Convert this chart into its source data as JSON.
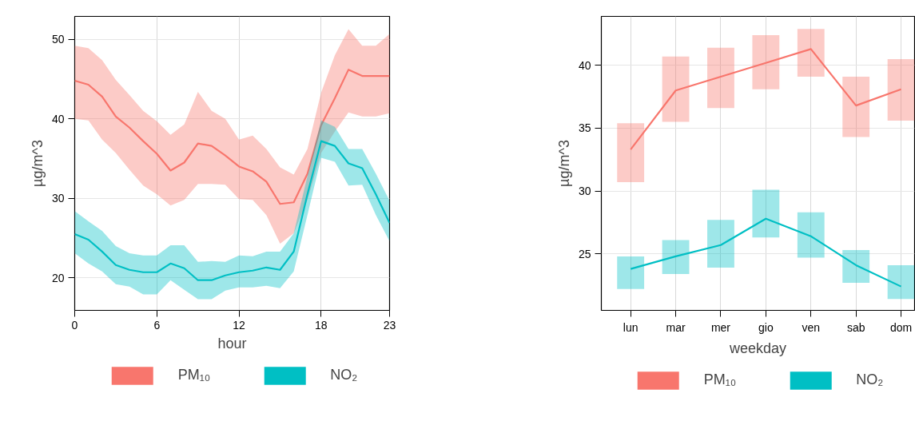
{
  "chart_data": [
    {
      "type": "line",
      "xlabel": "hour",
      "ylabel": "µg/m^3",
      "x": [
        0,
        1,
        2,
        3,
        4,
        5,
        6,
        7,
        8,
        9,
        10,
        11,
        12,
        13,
        14,
        15,
        16,
        17,
        18,
        19,
        20,
        21,
        22,
        23
      ],
      "xlim": [
        0,
        23
      ],
      "xticks": [
        0,
        6,
        12,
        18,
        23
      ],
      "ylim": [
        15.9,
        52.9
      ],
      "yticks": [
        20,
        30,
        40,
        50
      ],
      "grid": true,
      "legend": "bottom",
      "series": [
        {
          "name": "PM₁₀",
          "color": "#f8766d",
          "values": [
            44.8,
            44.3,
            42.8,
            40.3,
            38.9,
            37.2,
            35.6,
            33.5,
            34.5,
            36.9,
            36.6,
            35.4,
            34.0,
            33.4,
            32.1,
            29.3,
            29.5,
            33.1,
            39.2,
            42.6,
            46.2,
            45.4,
            45.4,
            45.4
          ],
          "upper": [
            49.2,
            48.9,
            47.4,
            44.9,
            43.0,
            41.0,
            39.7,
            38.0,
            39.3,
            43.4,
            41.0,
            40.0,
            37.4,
            37.9,
            36.2,
            33.9,
            33.0,
            36.2,
            43.3,
            48.0,
            51.3,
            49.2,
            49.2,
            50.7
          ],
          "lower": [
            40.0,
            39.8,
            37.4,
            35.7,
            33.6,
            31.6,
            30.5,
            29.1,
            29.8,
            31.8,
            31.8,
            31.7,
            29.9,
            29.8,
            27.9,
            24.3,
            25.6,
            29.8,
            35.7,
            38.4,
            40.8,
            40.3,
            40.3,
            40.7
          ]
        },
        {
          "name": "NO₂",
          "color": "#00bfc4",
          "values": [
            25.5,
            24.8,
            23.3,
            21.6,
            21.0,
            20.7,
            20.7,
            21.8,
            21.2,
            19.7,
            19.7,
            20.3,
            20.7,
            20.9,
            21.3,
            21.0,
            23.3,
            30.5,
            37.2,
            36.6,
            34.4,
            33.8,
            30.5,
            26.9
          ],
          "upper": [
            28.4,
            27.1,
            25.9,
            24.0,
            23.1,
            22.8,
            22.8,
            24.1,
            24.1,
            22.0,
            22.1,
            22.0,
            22.8,
            22.7,
            23.3,
            23.3,
            25.6,
            32.8,
            39.8,
            39.0,
            36.2,
            36.2,
            33.1,
            29.7
          ],
          "lower": [
            23.1,
            21.8,
            20.8,
            19.2,
            18.9,
            17.9,
            17.9,
            19.7,
            18.5,
            17.3,
            17.3,
            18.4,
            18.8,
            18.8,
            19.0,
            18.7,
            20.8,
            27.9,
            35.1,
            34.6,
            31.6,
            31.7,
            27.9,
            24.6
          ]
        }
      ]
    },
    {
      "type": "line",
      "xlabel": "weekday",
      "ylabel": "µg/m^3",
      "categories": [
        "lun",
        "mar",
        "mer",
        "gio",
        "ven",
        "sab",
        "dom"
      ],
      "ylim": [
        20.5,
        43.9
      ],
      "yticks": [
        25,
        30,
        35,
        40
      ],
      "grid": true,
      "legend": "bottom",
      "series": [
        {
          "type": "bar",
          "color": "#f8766d",
          "base": [
            30.7,
            35.5,
            36.6,
            38.1,
            39.1,
            34.3,
            35.6
          ],
          "values": [
            4.7,
            5.2,
            4.8,
            4.3,
            3.8,
            4.8,
            4.9
          ]
        },
        {
          "type": "bar",
          "color": "#00bfc4",
          "base": [
            22.2,
            23.4,
            23.9,
            26.3,
            24.7,
            22.7,
            21.4
          ],
          "values": [
            2.6,
            2.7,
            3.8,
            3.8,
            3.6,
            2.6,
            2.7
          ]
        },
        {
          "name": "PM₁₀",
          "color": "#f8766d",
          "values": [
            33.3,
            38.0,
            39.1,
            40.2,
            41.3,
            36.8,
            38.1
          ]
        },
        {
          "name": "NO₂",
          "color": "#00bfc4",
          "values": [
            23.8,
            24.8,
            25.7,
            27.8,
            26.4,
            24.1,
            22.4
          ]
        }
      ]
    }
  ]
}
